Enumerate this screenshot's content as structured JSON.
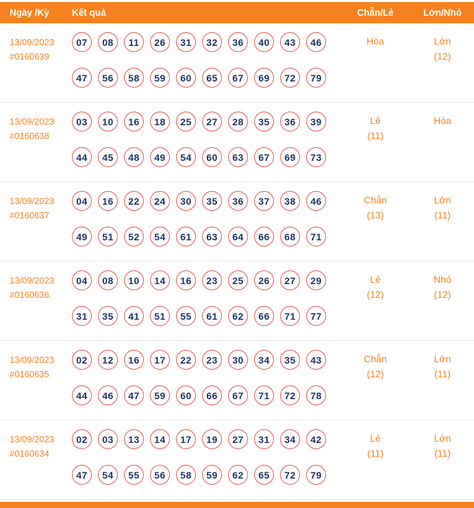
{
  "colors": {
    "accent_orange": "#f5821f",
    "circle_border_red": "#e2574c",
    "number_navy": "#1e3163"
  },
  "header": {
    "date_label": "Ngày /Kỳ",
    "result_label": "Kết quả",
    "even_odd_label": "Chẵn/Lẻ",
    "big_small_label": "Lớn/Nhỏ"
  },
  "rows": [
    {
      "date": "13/09/2023",
      "period": "#0160639",
      "numbers_line1": [
        "07",
        "08",
        "11",
        "26",
        "31",
        "32",
        "36",
        "40",
        "43",
        "46"
      ],
      "numbers_line2": [
        "47",
        "56",
        "58",
        "59",
        "60",
        "65",
        "67",
        "69",
        "72",
        "79"
      ],
      "even_odd": {
        "label": "Hòa",
        "count": ""
      },
      "big_small": {
        "label": "Lớn",
        "count": "(12)"
      }
    },
    {
      "date": "13/09/2023",
      "period": "#0160638",
      "numbers_line1": [
        "03",
        "10",
        "16",
        "18",
        "25",
        "27",
        "28",
        "35",
        "36",
        "39"
      ],
      "numbers_line2": [
        "44",
        "45",
        "48",
        "49",
        "54",
        "60",
        "63",
        "67",
        "69",
        "73"
      ],
      "even_odd": {
        "label": "Lẻ",
        "count": "(11)"
      },
      "big_small": {
        "label": "Hòa",
        "count": ""
      }
    },
    {
      "date": "13/09/2023",
      "period": "#0160637",
      "numbers_line1": [
        "04",
        "16",
        "22",
        "24",
        "30",
        "35",
        "36",
        "37",
        "38",
        "46"
      ],
      "numbers_line2": [
        "49",
        "51",
        "52",
        "54",
        "61",
        "63",
        "64",
        "66",
        "68",
        "71"
      ],
      "even_odd": {
        "label": "Chẵn",
        "count": "(13)"
      },
      "big_small": {
        "label": "Lớn",
        "count": "(11)"
      }
    },
    {
      "date": "13/09/2023",
      "period": "#0160636",
      "numbers_line1": [
        "04",
        "08",
        "10",
        "14",
        "16",
        "23",
        "25",
        "26",
        "27",
        "29"
      ],
      "numbers_line2": [
        "31",
        "35",
        "41",
        "51",
        "55",
        "61",
        "62",
        "66",
        "71",
        "77"
      ],
      "even_odd": {
        "label": "Lẻ",
        "count": "(12)"
      },
      "big_small": {
        "label": "Nhỏ",
        "count": "(12)"
      }
    },
    {
      "date": "13/09/2023",
      "period": "#0160635",
      "numbers_line1": [
        "02",
        "12",
        "16",
        "17",
        "22",
        "23",
        "30",
        "34",
        "35",
        "43"
      ],
      "numbers_line2": [
        "44",
        "46",
        "47",
        "59",
        "60",
        "66",
        "67",
        "71",
        "72",
        "78"
      ],
      "even_odd": {
        "label": "Chẵn",
        "count": "(12)"
      },
      "big_small": {
        "label": "Lớn",
        "count": "(11)"
      }
    },
    {
      "date": "13/09/2023",
      "period": "#0160634",
      "numbers_line1": [
        "02",
        "03",
        "13",
        "14",
        "17",
        "19",
        "27",
        "31",
        "34",
        "42"
      ],
      "numbers_line2": [
        "47",
        "54",
        "55",
        "56",
        "58",
        "59",
        "62",
        "65",
        "72",
        "79"
      ],
      "even_odd": {
        "label": "Lẻ",
        "count": "(11)"
      },
      "big_small": {
        "label": "Lớn",
        "count": "(11)"
      }
    }
  ]
}
